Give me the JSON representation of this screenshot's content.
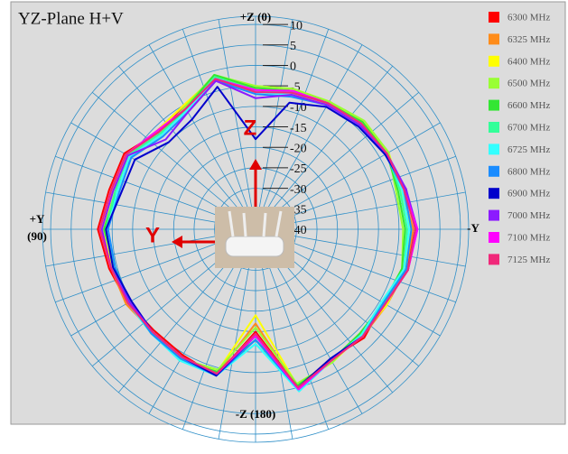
{
  "chart_data": {
    "type": "polar_line",
    "title": "YZ-Plane   H+V",
    "axis_labels": {
      "top": "+Z (0)",
      "left": [
        "+Y",
        "(90)"
      ],
      "bottom": "-Z (180)",
      "right": "-Y"
    },
    "annotations": [
      "Z",
      "Y"
    ],
    "rlim": [
      -40,
      12
    ],
    "rticks": [
      10,
      5,
      0,
      -5,
      -10,
      -15,
      -20,
      -25,
      -30,
      -35,
      -40
    ],
    "thetaticks": [
      0,
      10,
      20,
      30,
      40,
      50,
      60,
      70,
      80,
      90,
      100,
      110,
      120,
      130,
      140,
      150,
      160,
      170,
      180,
      190,
      200,
      210,
      220,
      230,
      240,
      250,
      260,
      270,
      280,
      290,
      300,
      310,
      320,
      330,
      340,
      350
    ],
    "theta": [
      0,
      15,
      30,
      45,
      60,
      75,
      90,
      105,
      120,
      135,
      150,
      165,
      180,
      195,
      210,
      225,
      240,
      255,
      270,
      285,
      300,
      315,
      330,
      345
    ],
    "series": [
      {
        "name": "6300 MHz",
        "color": "#ff0000",
        "values": [
          -6,
          -2.5,
          -5.5,
          -6.5,
          -3,
          -3,
          -1.5,
          -3,
          -4,
          -5,
          -4.5,
          -3,
          -15,
          0,
          -3.5,
          -2.5,
          -4,
          -2,
          -1,
          -2,
          -3.5,
          -3,
          -4,
          -5.5
        ]
      },
      {
        "name": "6325 MHz",
        "color": "#ff8c1a",
        "values": [
          -5.5,
          -2,
          -5,
          -6,
          -3.5,
          -3.5,
          -2,
          -3.5,
          -3.5,
          -4.5,
          -4,
          -3.5,
          -17,
          0,
          -3,
          -3,
          -3,
          -2,
          -1.5,
          -3,
          -3,
          -3.5,
          -4.5,
          -5
        ]
      },
      {
        "name": "6400 MHz",
        "color": "#ffff00",
        "values": [
          -5,
          -1.5,
          -5,
          -6,
          -4,
          -4,
          -2.5,
          -4,
          -4,
          -4,
          -3.5,
          -4,
          -19,
          -0.5,
          -2.5,
          -3.5,
          -3,
          -2.5,
          -2,
          -3.5,
          -2.5,
          -3,
          -4,
          -4.5
        ]
      },
      {
        "name": "6500 MHz",
        "color": "#99ff33",
        "values": [
          -5,
          -1,
          -5.5,
          -7,
          -4,
          -4.5,
          -3,
          -4.5,
          -4.5,
          -4,
          -3.5,
          -4.5,
          -16,
          -1,
          -2.5,
          -4,
          -3.5,
          -3,
          -4,
          -4.5,
          -2.5,
          -2.5,
          -4,
          -4.5
        ]
      },
      {
        "name": "6600 MHz",
        "color": "#33e633",
        "values": [
          -5.5,
          -1,
          -6,
          -7.5,
          -4.5,
          -5,
          -3,
          -4.5,
          -4.5,
          -4.5,
          -3,
          -4,
          -13,
          -0.5,
          -3,
          -4,
          -4,
          -3,
          -3.5,
          -4,
          -3,
          -3,
          -4.5,
          -5
        ]
      },
      {
        "name": "6700 MHz",
        "color": "#33ff99",
        "values": [
          -6,
          -1.5,
          -6.5,
          -7,
          -4,
          -4.5,
          -3.5,
          -4,
          -4,
          -4.5,
          -3,
          -3.5,
          -12,
          0,
          -3,
          -3.5,
          -4,
          -2.5,
          -3,
          -3.5,
          -3,
          -3.5,
          -4.5,
          -5.5
        ]
      },
      {
        "name": "6725 MHz",
        "color": "#33ffff",
        "values": [
          -6.5,
          -2,
          -6.5,
          -7.5,
          -4.5,
          -5,
          -4,
          -4.5,
          -4,
          -4,
          -3,
          -3,
          -12,
          1,
          -3,
          -3.5,
          -4.5,
          -2.5,
          -2.5,
          -3,
          -3,
          -4,
          -5,
          -6
        ]
      },
      {
        "name": "6800 MHz",
        "color": "#1a8cff",
        "values": [
          -7,
          -2.5,
          -7,
          -8,
          -5,
          -5.5,
          -4,
          -4.5,
          -4.5,
          -4,
          -3.5,
          -3,
          -13,
          0.5,
          -3.5,
          -3,
          -4,
          -2,
          -2,
          -2.5,
          -3.5,
          -4,
          -5,
          -6.5
        ]
      },
      {
        "name": "6900 MHz",
        "color": "#0000cc",
        "values": [
          -18,
          -4,
          -9,
          -10,
          -6,
          -6,
          -3.5,
          -4,
          -5,
          -4.5,
          -4,
          -3,
          -14,
          0,
          -3.5,
          -3,
          -3.5,
          -1.5,
          -1,
          -2,
          -3.5,
          -4.5,
          -5.5,
          -8
        ]
      },
      {
        "name": "7000 MHz",
        "color": "#8c1aff",
        "values": [
          -8,
          -2.5,
          -7,
          -9,
          -4,
          -4,
          -2.5,
          -3.5,
          -4.5,
          -4.5,
          -4,
          -3.5,
          -14,
          0.5,
          -3,
          -3,
          -3.5,
          -1.5,
          -0.5,
          -2,
          -3,
          -4,
          -5,
          -6
        ]
      },
      {
        "name": "7100 MHz",
        "color": "#ff00ff",
        "values": [
          -6,
          -2,
          -6,
          -6,
          -3.5,
          -3.5,
          -2,
          -3.5,
          -4,
          -4.5,
          -4,
          -3.5,
          -14,
          0.5,
          -3,
          -3,
          -3.5,
          -1.5,
          -0.5,
          -2.5,
          -3,
          -3.5,
          -4.5,
          -5
        ]
      },
      {
        "name": "7125 MHz",
        "color": "#f0287a",
        "values": [
          -6.5,
          -2,
          -6,
          -6.5,
          -3.5,
          -3.5,
          -2,
          -3.5,
          -4,
          -4.5,
          -4,
          -3.5,
          -14.5,
          0,
          -3,
          -3,
          -3.5,
          -1.5,
          -1,
          -2.5,
          -3,
          -3.5,
          -4.5,
          -5.5
        ]
      }
    ]
  }
}
